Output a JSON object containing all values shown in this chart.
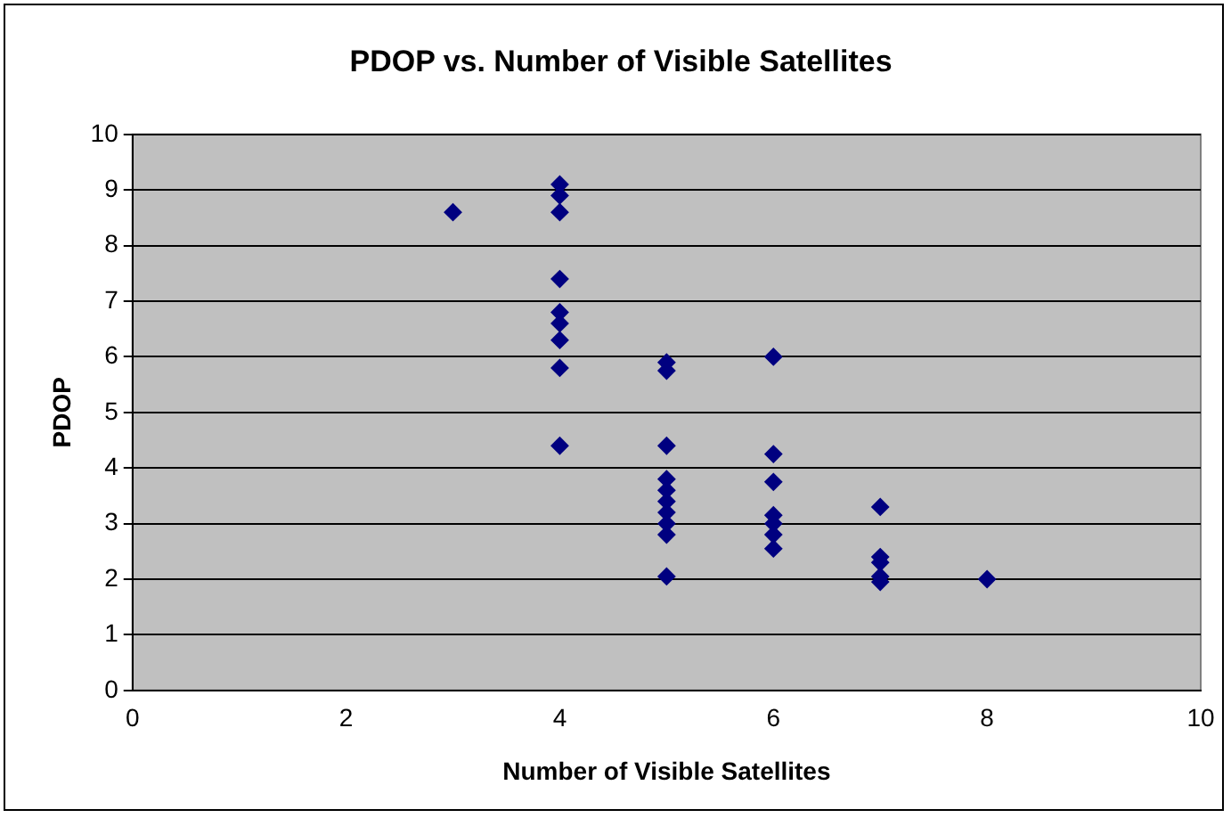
{
  "chart_data": {
    "type": "scatter",
    "title": "PDOP vs. Number of Visible Satellites",
    "xlabel": "Number of Visible Satellites",
    "ylabel": "PDOP",
    "x": [
      3,
      4,
      4,
      4,
      4,
      4,
      4,
      4,
      4,
      4,
      5,
      5,
      5,
      5,
      5,
      5,
      5,
      5,
      5,
      5,
      6,
      6,
      6,
      6,
      6,
      6,
      6,
      7,
      7,
      7,
      7,
      7,
      8
    ],
    "values": [
      8.6,
      9.1,
      8.9,
      8.6,
      7.4,
      6.8,
      6.6,
      6.3,
      5.8,
      4.4,
      5.9,
      5.75,
      4.4,
      3.8,
      3.6,
      3.4,
      3.2,
      3.0,
      2.8,
      2.05,
      6.0,
      4.25,
      3.75,
      3.15,
      3.0,
      2.8,
      2.55,
      3.3,
      2.4,
      2.3,
      2.05,
      1.95,
      2.0
    ],
    "color": "#000080",
    "marker": "diamond",
    "xlim": [
      0,
      10
    ],
    "xticks": [
      0,
      2,
      4,
      6,
      8,
      10
    ],
    "ylim": [
      0,
      10
    ],
    "yticks": [
      0,
      1,
      2,
      3,
      4,
      5,
      6,
      7,
      8,
      9,
      10
    ],
    "grid": "y"
  }
}
